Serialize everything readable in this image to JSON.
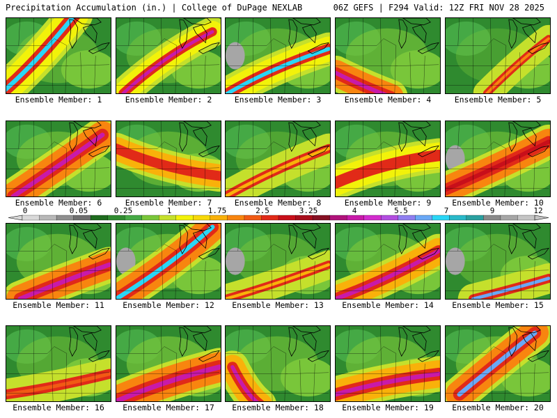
{
  "header": {
    "left_title": "Precipitation Accumulation (in.) | College of DuPage NEXLAB",
    "right_title": "06Z GEFS | F294 Valid: 12Z FRI NOV 28 2025"
  },
  "panels": [
    {
      "label": "Ensemble Member: 1"
    },
    {
      "label": "Ensemble Member: 2"
    },
    {
      "label": "Ensemble Member: 3"
    },
    {
      "label": "Ensemble Member: 4"
    },
    {
      "label": "Ensemble Member: 5"
    },
    {
      "label": "Ensemble Member: 6"
    },
    {
      "label": "Ensemble Member: 7"
    },
    {
      "label": "Ensemble Member: 8"
    },
    {
      "label": "Ensemble Member: 9"
    },
    {
      "label": "Ensemble Member: 10"
    },
    {
      "label": "Ensemble Member: 11"
    },
    {
      "label": "Ensemble Member: 12"
    },
    {
      "label": "Ensemble Member: 13"
    },
    {
      "label": "Ensemble Member: 14"
    },
    {
      "label": "Ensemble Member: 15"
    },
    {
      "label": "Ensemble Member: 16"
    },
    {
      "label": "Ensemble Member: 17"
    },
    {
      "label": "Ensemble Member: 18"
    },
    {
      "label": "Ensemble Member: 19"
    },
    {
      "label": "Ensemble Member: 20"
    }
  ],
  "colorbar": {
    "tick_labels": [
      "0",
      "0.05",
      "0.25",
      "1",
      "1.75",
      "2.5",
      "3.25",
      "4",
      "5.5",
      "7",
      "9",
      "12"
    ],
    "colors": [
      "#d9d9d9",
      "#b8b8b8",
      "#8f8f8f",
      "#6e6e6e",
      "#1f6b1f",
      "#2f8a2f",
      "#45a945",
      "#79c63a",
      "#c5e02c",
      "#f2f20a",
      "#f7d80a",
      "#f9b10a",
      "#f8850f",
      "#f15a14",
      "#e12a18",
      "#c80f1a",
      "#a80d1c",
      "#861024",
      "#b0127a",
      "#c81aa9",
      "#d22ccd",
      "#b24de0",
      "#8f7ef0",
      "#6aa8f6",
      "#2ad6f6",
      "#2ab9c9",
      "#2aa0a0",
      "#8a8a8a",
      "#a6a6a6",
      "#c4c4c4"
    ]
  }
}
